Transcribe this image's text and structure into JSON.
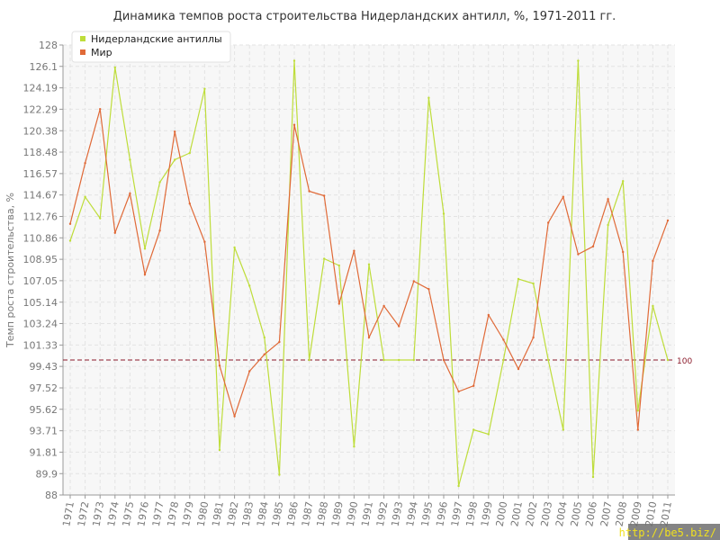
{
  "chart_data": {
    "type": "line",
    "title": "Динамика темпов роста строительства Нидерландских антилл, %, 1971-2011 гг.",
    "xlabel": "",
    "ylabel": "Темп роста строительства, %",
    "ylim": [
      88,
      128
    ],
    "yticks": [
      "88",
      "89.9",
      "91.81",
      "93.71",
      "95.62",
      "97.52",
      "99.43",
      "101.33",
      "103.24",
      "105.14",
      "107.05",
      "108.95",
      "110.86",
      "112.76",
      "114.67",
      "116.57",
      "118.48",
      "120.38",
      "122.29",
      "124.19",
      "126.1",
      "128"
    ],
    "x": [
      "1971",
      "1972",
      "1973",
      "1974",
      "1975",
      "1976",
      "1977",
      "1978",
      "1979",
      "1980",
      "1981",
      "1982",
      "1983",
      "1984",
      "1985",
      "1986",
      "1987",
      "1988",
      "1989",
      "1990",
      "1991",
      "1992",
      "1993",
      "1994",
      "1995",
      "1996",
      "1997",
      "1998",
      "1999",
      "2000",
      "2001",
      "2002",
      "2003",
      "2004",
      "2005",
      "2006",
      "2007",
      "2008",
      "2009",
      "2010",
      "2011"
    ],
    "reference": {
      "value": 100,
      "label": "100",
      "color": "#8b1a2a"
    },
    "grid": true,
    "legend": "top-left",
    "series": [
      {
        "name": "Нидерландские антиллы",
        "color": "#bedd3a",
        "values": [
          110.6,
          114.5,
          112.6,
          126.0,
          117.8,
          109.9,
          115.8,
          117.8,
          118.4,
          124.1,
          92.0,
          110.0,
          106.6,
          102.0,
          89.8,
          126.6,
          100.0,
          109.0,
          108.4,
          92.3,
          108.5,
          100.0,
          100.0,
          100.0,
          123.3,
          113.0,
          88.8,
          93.8,
          93.4,
          100.0,
          107.2,
          106.8,
          100.0,
          93.8,
          126.6,
          89.6,
          112.0,
          115.9,
          95.5,
          104.8,
          100.0
        ]
      },
      {
        "name": "Мир",
        "color": "#e06a38",
        "values": [
          112.1,
          117.5,
          122.3,
          111.3,
          114.8,
          107.6,
          111.5,
          120.3,
          113.9,
          110.5,
          99.5,
          95.0,
          99.0,
          100.5,
          101.6,
          120.9,
          115.0,
          114.6,
          105.0,
          109.7,
          102.0,
          104.8,
          103.0,
          107.0,
          106.3,
          100.0,
          97.2,
          97.7,
          104.0,
          101.8,
          99.2,
          102.0,
          112.2,
          114.5,
          109.4,
          110.1,
          114.3,
          109.6,
          93.8,
          108.8,
          112.4
        ]
      }
    ]
  },
  "watermark": "http://be5.biz/"
}
